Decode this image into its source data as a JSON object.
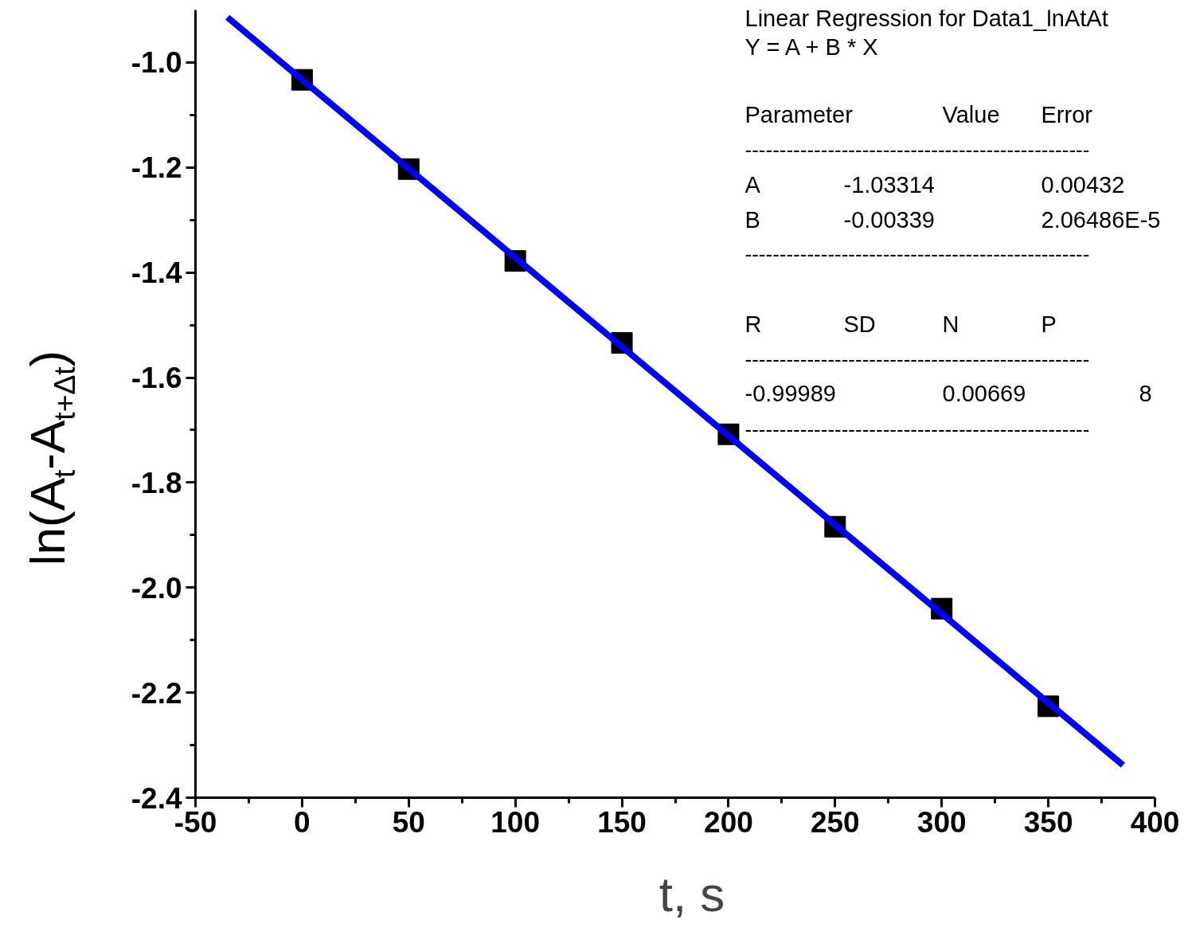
{
  "chart_data": {
    "type": "scatter",
    "xlabel": "t, s",
    "ylabel": "ln(A$_{t}$-A$_{t+Δt}$)",
    "x": [
      0,
      50,
      100,
      150,
      200,
      250,
      300,
      350
    ],
    "series": [
      {
        "color": "#000000",
        "marker": "square",
        "values": [
          -1.033,
          -1.203,
          -1.378,
          -1.534,
          -1.708,
          -1.884,
          -2.04,
          -2.226
        ]
      },
      {
        "type": "line",
        "color": "#0000ff",
        "marker": "none",
        "x": [
          -35,
          385
        ],
        "values": [
          -0.914,
          -2.338
        ]
      }
    ],
    "xlim": [
      -50,
      400
    ],
    "ylim": [
      -2.4,
      -0.9
    ],
    "xticks": [
      -50,
      0,
      50,
      100,
      150,
      200,
      250,
      300,
      350,
      400
    ],
    "yticks": [
      {
        "value": -2.4,
        "label": "-2.4"
      },
      {
        "value": -2.2,
        "label": "-2.2"
      },
      {
        "value": -2.0,
        "label": "-2.0"
      },
      {
        "value": -1.8,
        "label": "-1.8"
      },
      {
        "value": -1.6,
        "label": "-1.6"
      },
      {
        "value": -1.4,
        "label": "-1.4"
      },
      {
        "value": -1.2,
        "label": "-1.2"
      },
      {
        "value": -1.0,
        "label": "-1.0"
      }
    ],
    "grid": false,
    "annotations": [
      "Linear Regression for Data1_lnAtAt",
      "Y = A + B * X",
      "Parameter",
      "Value",
      "Error",
      "--------------------------------------------------",
      "A",
      "-1.03314",
      "0.00432",
      "B",
      "-0.00339",
      "2.06486E-5",
      "--------------------------------------------------",
      "R",
      "SD",
      "N",
      "P",
      "--------------------------------------------------",
      "-0.99989",
      "0.00669",
      "8",
      "--------------------------------------------------"
    ]
  }
}
